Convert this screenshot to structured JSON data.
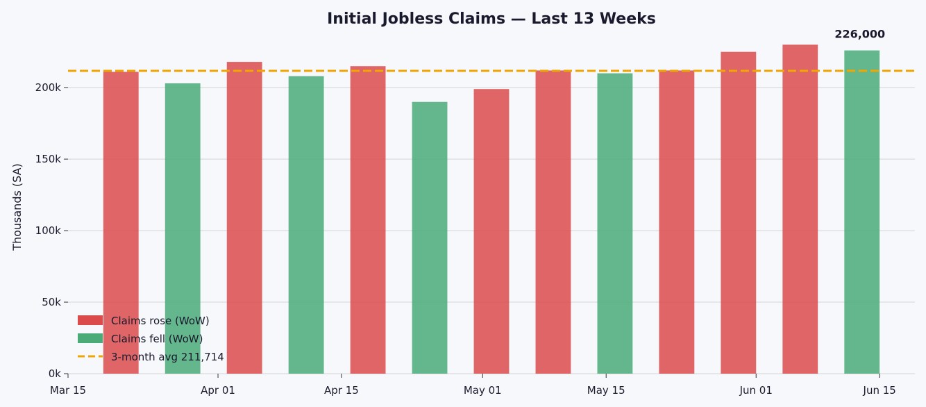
{
  "chart_data": {
    "type": "bar",
    "title": "Initial Jobless Claims — Last 13 Weeks",
    "ylabel": "Thousands (SA)",
    "xlabel": "",
    "ylim": [
      0,
      236000
    ],
    "xlim": [
      "2024-03-15",
      "2024-06-19"
    ],
    "grid": "horizontal",
    "legend_position": "bottom-left",
    "y_ticks": [
      {
        "value": 0,
        "label": "0k"
      },
      {
        "value": 50000,
        "label": "50k"
      },
      {
        "value": 100000,
        "label": "100k"
      },
      {
        "value": 150000,
        "label": "150k"
      },
      {
        "value": 200000,
        "label": "200k"
      }
    ],
    "x_ticks": [
      {
        "date": "2024-03-15",
        "label": "Mar 15"
      },
      {
        "date": "2024-04-01",
        "label": "Apr 01"
      },
      {
        "date": "2024-04-15",
        "label": "Apr 15"
      },
      {
        "date": "2024-05-01",
        "label": "May 01"
      },
      {
        "date": "2024-05-15",
        "label": "May 15"
      },
      {
        "date": "2024-06-01",
        "label": "Jun 01"
      },
      {
        "date": "2024-06-15",
        "label": "Jun 15"
      }
    ],
    "bars": [
      {
        "date": "2024-03-21",
        "value": 211000,
        "change": "rose"
      },
      {
        "date": "2024-03-28",
        "value": 203000,
        "change": "fell"
      },
      {
        "date": "2024-04-04",
        "value": 218000,
        "change": "rose"
      },
      {
        "date": "2024-04-11",
        "value": 208000,
        "change": "fell"
      },
      {
        "date": "2024-04-18",
        "value": 215000,
        "change": "rose"
      },
      {
        "date": "2024-04-25",
        "value": 190000,
        "change": "fell"
      },
      {
        "date": "2024-05-02",
        "value": 199000,
        "change": "rose"
      },
      {
        "date": "2024-05-09",
        "value": 212000,
        "change": "rose"
      },
      {
        "date": "2024-05-16",
        "value": 210000,
        "change": "fell"
      },
      {
        "date": "2024-05-23",
        "value": 212000,
        "change": "rose"
      },
      {
        "date": "2024-05-30",
        "value": 225000,
        "change": "rose"
      },
      {
        "date": "2024-06-06",
        "value": 230000,
        "change": "rose"
      },
      {
        "date": "2024-06-13",
        "value": 226000,
        "change": "fell"
      }
    ],
    "average": {
      "value": 211714,
      "label": "3-month avg  211,714"
    },
    "annotation": {
      "text": "226,000",
      "date": "2024-06-13",
      "value": 226000
    },
    "legend": [
      {
        "label": "Claims rose (WoW)",
        "kind": "rose"
      },
      {
        "label": "Claims fell (WoW)",
        "kind": "fell"
      },
      {
        "label": "3-month avg  211,714",
        "kind": "avg"
      }
    ],
    "colors": {
      "rose": "#dc4b4b",
      "fell": "#4aab78",
      "avg": "#f0a500",
      "grid": "#d3d3d3",
      "text": "#1a1a2e"
    }
  }
}
